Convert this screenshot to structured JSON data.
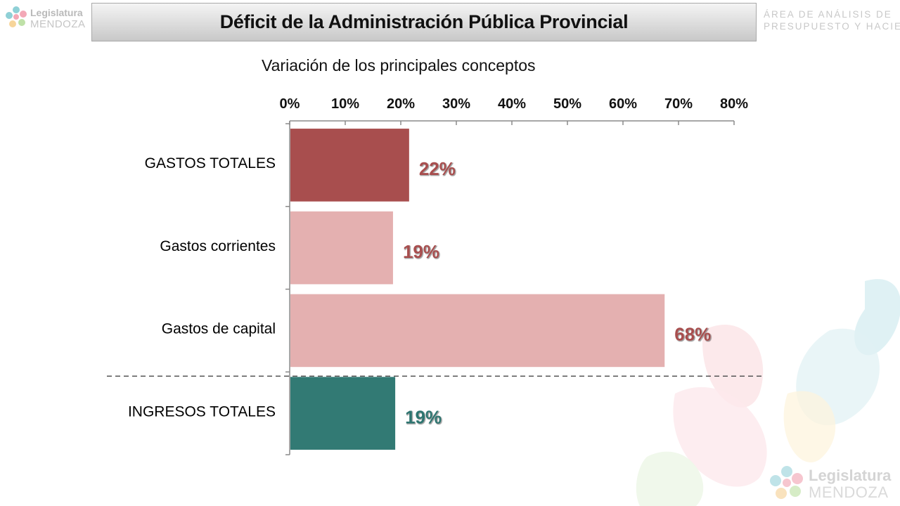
{
  "header": {
    "title": "Déficit de la Administración Pública Provincial",
    "area_line1": "ÁREA DE ANÁLISIS DE",
    "area_line2": "PRESUPUESTO Y HACIENDA"
  },
  "logo": {
    "line1": "Legislatura",
    "line2": "MENDOZA"
  },
  "colors": {
    "dark_red": "#a84e4e",
    "light_pink": "#e4b0b0",
    "teal": "#327a74",
    "label_red": "#a84e4e",
    "label_teal": "#2e7570"
  },
  "chart_data": {
    "type": "bar",
    "orientation": "horizontal",
    "title": "Variación de los principales conceptos",
    "xlabel": "",
    "ylabel": "",
    "xlim": [
      0,
      80
    ],
    "xticks": [
      "0%",
      "10%",
      "20%",
      "30%",
      "40%",
      "50%",
      "60%",
      "70%",
      "80%"
    ],
    "categories": [
      "GASTOS TOTALES",
      "Gastos corrientes",
      "Gastos de capital",
      "INGRESOS TOTALES"
    ],
    "values": [
      21.5,
      18.6,
      67.5,
      19
    ],
    "value_labels": [
      "22%",
      "19%",
      "68%",
      "19%"
    ],
    "bar_colors": [
      "#a84e4e",
      "#e4b0b0",
      "#e4b0b0",
      "#327a74"
    ],
    "label_colors": [
      "#a84e4e",
      "#a84e4e",
      "#a84e4e",
      "#2e7570"
    ],
    "axis_position": "top",
    "grid": false,
    "separator": "dashed line between Gastos de capital and INGRESOS TOTALES"
  }
}
